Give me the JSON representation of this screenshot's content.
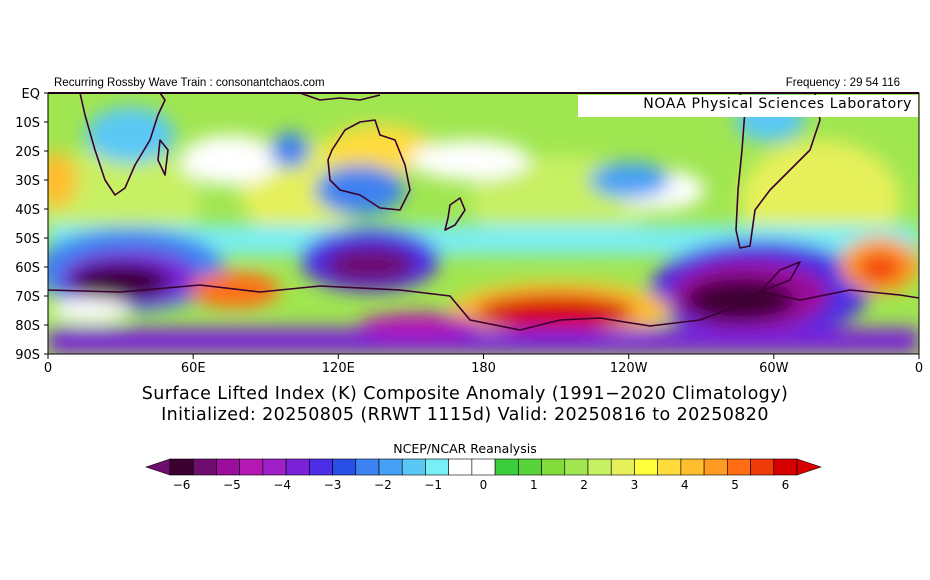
{
  "header": {
    "left": "Recurring Rossby Wave Train : consonantchaos.com",
    "right": "Frequency : 29 54 116",
    "lab": "NOAA Physical Sciences Laboratory"
  },
  "title": {
    "line1": "Surface Lifted Index (K) Composite Anomaly (1991−2020 Climatology)",
    "line2": "Initialized: 20250805 (RRWT 1115d) Valid: 20250816 to 20250820"
  },
  "map": {
    "lat_labels": [
      "EQ",
      "10S",
      "20S",
      "30S",
      "40S",
      "50S",
      "60S",
      "70S",
      "80S",
      "90S"
    ],
    "lon_labels": [
      "0",
      "60E",
      "120E",
      "180",
      "120W",
      "60W",
      "0"
    ]
  },
  "colorbar": {
    "caption": "NCEP/NCAR Reanalysis",
    "tick_labels": [
      "−6",
      "−5",
      "−4",
      "−3",
      "−2",
      "−1",
      "0",
      "1",
      "2",
      "3",
      "4",
      "5",
      "6"
    ],
    "colors": [
      "#3c0030",
      "#6e0d6e",
      "#9b0d9b",
      "#b419b4",
      "#a020c8",
      "#7a22d8",
      "#4b2ee6",
      "#2850e6",
      "#3c82f0",
      "#46a0f5",
      "#5ac8f5",
      "#78eef5",
      "#ffffff",
      "#ffffff",
      "#3ccd3c",
      "#5ad23c",
      "#82dc3c",
      "#a0e650",
      "#c8f064",
      "#e6f05a",
      "#ffff3c",
      "#ffdc3c",
      "#ffbe2d",
      "#ff9b23",
      "#ff6e14",
      "#f03c0a",
      "#d70000"
    ]
  },
  "chart_data": {
    "type": "heatmap",
    "variable": "Surface Lifted Index (K) Composite Anomaly",
    "x_range": [
      "0",
      "0"
    ],
    "y_range": [
      "EQ",
      "90S"
    ],
    "value_range": [
      -6,
      6
    ],
    "features": [
      {
        "region": "0-60E, 55S-72S",
        "value": -6
      },
      {
        "region": "60E-90E, 65S-72S",
        "value": 5
      },
      {
        "region": "110E-160E, 55S-68S",
        "value": -5
      },
      {
        "region": "170W-130W, 72S-82S",
        "value": 6
      },
      {
        "region": "100W-40W, 60S-80S",
        "value": -6
      },
      {
        "region": "40W-10W, 55S-70S",
        "value": 5
      },
      {
        "region": "0-10E, 25S-35S",
        "value": 4
      },
      {
        "region": "120E-150E, 25S-35S",
        "value": -3
      }
    ]
  }
}
